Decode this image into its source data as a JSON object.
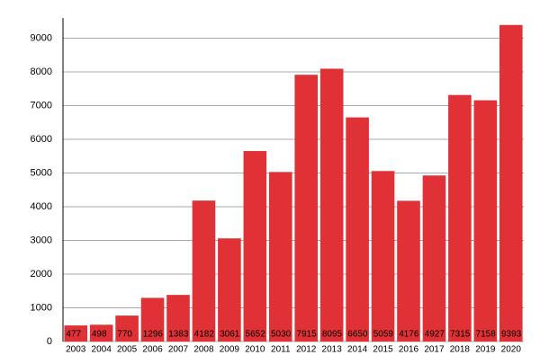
{
  "chart_data": {
    "type": "bar",
    "categories": [
      "2003",
      "2004",
      "2005",
      "2006",
      "2007",
      "2008",
      "2009",
      "2010",
      "2011",
      "2012",
      "2013",
      "2014",
      "2015",
      "2016",
      "2017",
      "2018",
      "2019",
      "2020"
    ],
    "values": [
      477,
      498,
      770,
      1296,
      1383,
      4182,
      3061,
      5652,
      5030,
      7915,
      8095,
      6650,
      5059,
      4176,
      4927,
      7315,
      7158,
      9393
    ],
    "color": "#e03236",
    "ylim": [
      0,
      9600
    ],
    "yticks": [
      0,
      1000,
      2000,
      3000,
      4000,
      5000,
      6000,
      7000,
      8000,
      9000
    ],
    "grid": true
  }
}
